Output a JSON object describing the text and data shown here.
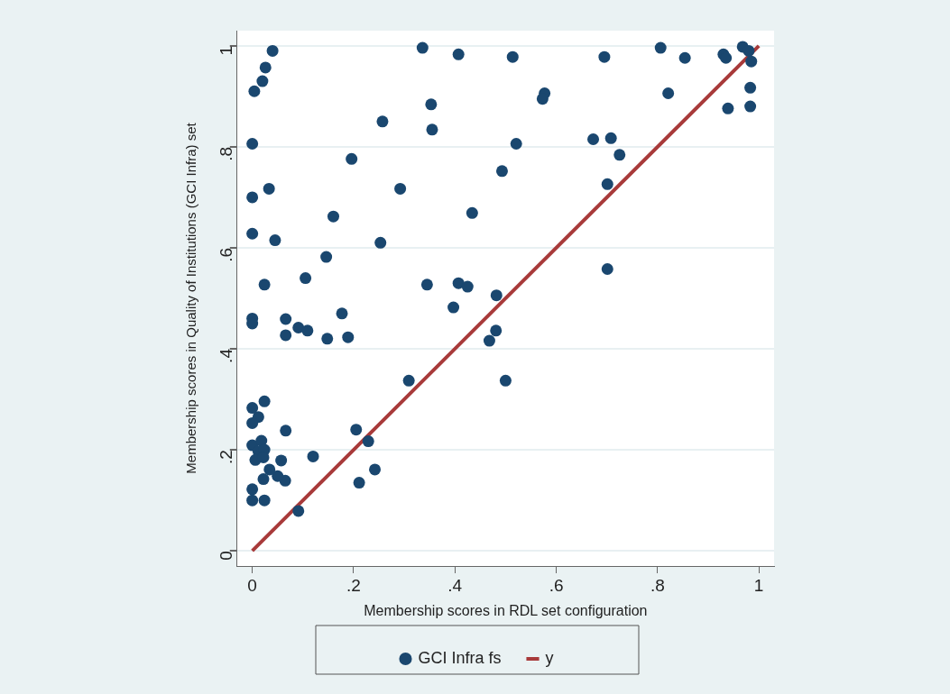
{
  "chart_data": {
    "type": "scatter",
    "xlabel": "Membership scores in RDL set configuration",
    "ylabel": "Membership scores in Quality of Institutions (GCI Infra) set",
    "xlim": [
      -0.03,
      1.03
    ],
    "ylim": [
      -0.03,
      1.03
    ],
    "xticks": [
      {
        "value": 0,
        "label": "0"
      },
      {
        "value": 0.2,
        "label": ".2"
      },
      {
        "value": 0.4,
        "label": ".4"
      },
      {
        "value": 0.6,
        "label": ".6"
      },
      {
        "value": 0.8,
        "label": ".8"
      },
      {
        "value": 1,
        "label": "1"
      }
    ],
    "yticks": [
      {
        "value": 0,
        "label": "0"
      },
      {
        "value": 0.2,
        "label": ".2"
      },
      {
        "value": 0.4,
        "label": ".4"
      },
      {
        "value": 0.6,
        "label": ".6"
      },
      {
        "value": 0.8,
        "label": ".8"
      },
      {
        "value": 1,
        "label": "1"
      }
    ],
    "grid": "y",
    "legend": "bottom",
    "series": [
      {
        "name": "GCI Infra fs",
        "marker": "circle",
        "color": "#1a476f",
        "x": [
          0.04,
          0.026,
          0.02,
          0.004,
          0,
          0,
          0.033,
          0,
          0.045,
          0.16,
          0.196,
          0.257,
          0.292,
          0.336,
          0.407,
          0.353,
          0.355,
          0.493,
          0.434,
          0.253,
          0.146,
          0.105,
          0.024,
          0.345,
          0.407,
          0.425,
          0.482,
          0.514,
          0.695,
          0.806,
          0.854,
          0.93,
          0.935,
          0.968,
          0.98,
          0.985,
          0.983,
          0.983,
          0.939,
          0.821,
          0.577,
          0.573,
          0.521,
          0.673,
          0.708,
          0.725,
          0.701,
          0.701,
          0,
          0,
          0.066,
          0.066,
          0.091,
          0.109,
          0.148,
          0.177,
          0.189,
          0.397,
          0.468,
          0.481,
          0.5,
          0.309,
          0.205,
          0.229,
          0.242,
          0.211,
          0.091,
          0.12,
          0.066,
          0.057,
          0.065,
          0.05,
          0.034,
          0.022,
          0.024,
          0,
          0,
          0.024,
          0,
          0.012,
          0,
          0,
          0.018,
          0.012,
          0.024,
          0.006,
          0.022
        ],
        "values": [
          0.99,
          0.957,
          0.93,
          0.91,
          0.806,
          0.7,
          0.717,
          0.628,
          0.615,
          0.662,
          0.776,
          0.85,
          0.717,
          0.996,
          0.983,
          0.884,
          0.834,
          0.752,
          0.669,
          0.61,
          0.582,
          0.54,
          0.527,
          0.527,
          0.53,
          0.523,
          0.506,
          0.978,
          0.978,
          0.996,
          0.976,
          0.983,
          0.976,
          0.998,
          0.99,
          0.969,
          0.917,
          0.88,
          0.876,
          0.906,
          0.906,
          0.895,
          0.806,
          0.815,
          0.817,
          0.784,
          0.726,
          0.558,
          0.46,
          0.45,
          0.459,
          0.427,
          0.442,
          0.436,
          0.42,
          0.47,
          0.423,
          0.482,
          0.416,
          0.436,
          0.337,
          0.337,
          0.24,
          0.217,
          0.161,
          0.135,
          0.079,
          0.187,
          0.238,
          0.179,
          0.139,
          0.148,
          0.161,
          0.142,
          0.1,
          0.1,
          0.122,
          0.296,
          0.283,
          0.265,
          0.253,
          0.209,
          0.218,
          0.197,
          0.2,
          0.18,
          0.185
        ]
      },
      {
        "name": "y",
        "type": "line",
        "marker": "none",
        "color": "#a83a3a",
        "x": [
          0,
          1
        ],
        "values": [
          0,
          1
        ]
      }
    ]
  }
}
